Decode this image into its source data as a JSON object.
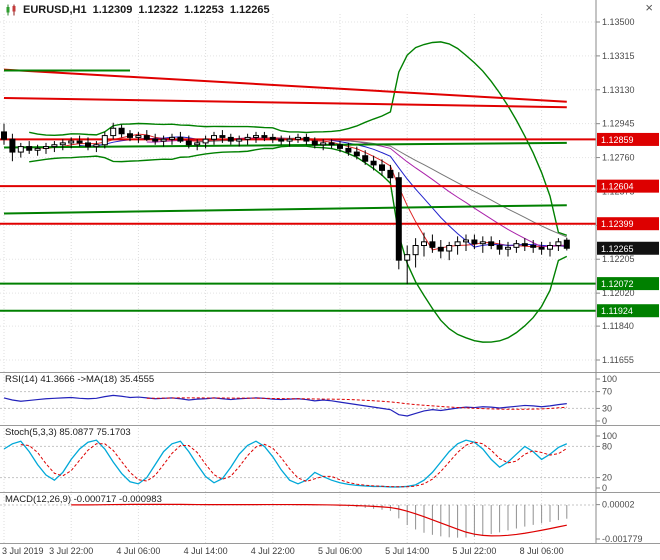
{
  "window": {
    "close_icon": "×"
  },
  "header": {
    "symbol": "EURUSD,H1",
    "open": "1.12309",
    "high": "1.12322",
    "low": "1.12253",
    "close": "1.12265"
  },
  "panels": {
    "rsi_label": "RSI(14) 41.3666 ->MA(18) 35.4555",
    "stoch_label": "Stoch(5,3,3) 85.0877 75.1703",
    "macd_label": "MACD(12,26,9) -0.000717 -0.000983"
  },
  "chart_data": [
    {
      "type": "candlestick",
      "title": "EURUSD,H1",
      "ylim": [
        1.11655,
        1.135
      ],
      "label_every_n_bars": 8,
      "x_labels": [
        "3 Jul 2019",
        "3 Jul 22:00",
        "4 Jul 06:00",
        "4 Jul 14:00",
        "4 Jul 22:00",
        "5 Jul 06:00",
        "5 Jul 14:00",
        "5 Jul 22:00",
        "8 Jul 06:00"
      ],
      "y_ticks": [
        "1.13500",
        "1.13315",
        "1.13130",
        "1.12945",
        "1.12760",
        "1.12575",
        "1.12390",
        "1.12205",
        "1.12020",
        "1.11840",
        "1.11655"
      ],
      "candles": [
        [
          1.129,
          1.12945,
          1.1283,
          1.1286
        ],
        [
          1.1286,
          1.1289,
          1.1274,
          1.1279
        ],
        [
          1.1279,
          1.1284,
          1.1276,
          1.1282
        ],
        [
          1.1282,
          1.1285,
          1.1278,
          1.128
        ],
        [
          1.128,
          1.1283,
          1.1277,
          1.1281
        ],
        [
          1.1281,
          1.1284,
          1.1278,
          1.1282
        ],
        [
          1.1282,
          1.1285,
          1.1279,
          1.1283
        ],
        [
          1.1283,
          1.1286,
          1.128,
          1.1284
        ],
        [
          1.1284,
          1.1287,
          1.1281,
          1.1285
        ],
        [
          1.1285,
          1.1288,
          1.1282,
          1.1284
        ],
        [
          1.1284,
          1.1287,
          1.128,
          1.1282
        ],
        [
          1.1282,
          1.1285,
          1.1279,
          1.1283
        ],
        [
          1.1283,
          1.129,
          1.1281,
          1.1288
        ],
        [
          1.1288,
          1.1295,
          1.1286,
          1.1292
        ],
        [
          1.1292,
          1.1294,
          1.1287,
          1.1289
        ],
        [
          1.1289,
          1.1291,
          1.1285,
          1.1287
        ],
        [
          1.1287,
          1.129,
          1.1284,
          1.1288
        ],
        [
          1.1288,
          1.1291,
          1.1285,
          1.1286
        ],
        [
          1.1286,
          1.1289,
          1.1283,
          1.1285
        ],
        [
          1.1285,
          1.1288,
          1.1282,
          1.1286
        ],
        [
          1.1286,
          1.1289,
          1.1283,
          1.1287
        ],
        [
          1.1287,
          1.129,
          1.1284,
          1.1285
        ],
        [
          1.1285,
          1.1288,
          1.1281,
          1.1283
        ],
        [
          1.1283,
          1.1286,
          1.128,
          1.1284
        ],
        [
          1.1284,
          1.1288,
          1.1281,
          1.1286
        ],
        [
          1.1286,
          1.129,
          1.1283,
          1.1288
        ],
        [
          1.1288,
          1.1291,
          1.1284,
          1.1287
        ],
        [
          1.1287,
          1.1289,
          1.1283,
          1.1285
        ],
        [
          1.1285,
          1.1288,
          1.1282,
          1.1286
        ],
        [
          1.1286,
          1.1289,
          1.1283,
          1.1287
        ],
        [
          1.1287,
          1.129,
          1.1284,
          1.1288
        ],
        [
          1.1288,
          1.129,
          1.1285,
          1.1287
        ],
        [
          1.1287,
          1.1289,
          1.1284,
          1.1286
        ],
        [
          1.1286,
          1.1288,
          1.1283,
          1.1285
        ],
        [
          1.1285,
          1.1288,
          1.1282,
          1.1286
        ],
        [
          1.1286,
          1.1289,
          1.1284,
          1.1287
        ],
        [
          1.1287,
          1.1289,
          1.1283,
          1.1285
        ],
        [
          1.1285,
          1.1287,
          1.1281,
          1.1283
        ],
        [
          1.1283,
          1.1286,
          1.128,
          1.1284
        ],
        [
          1.1284,
          1.1286,
          1.1281,
          1.1283
        ],
        [
          1.1283,
          1.1285,
          1.1279,
          1.1281
        ],
        [
          1.1281,
          1.1284,
          1.1277,
          1.1279
        ],
        [
          1.1279,
          1.1282,
          1.1275,
          1.1277
        ],
        [
          1.1277,
          1.128,
          1.1272,
          1.1274
        ],
        [
          1.1274,
          1.1277,
          1.1269,
          1.1272
        ],
        [
          1.1272,
          1.1275,
          1.1266,
          1.1269
        ],
        [
          1.1269,
          1.1272,
          1.1262,
          1.1265
        ],
        [
          1.1265,
          1.1268,
          1.1215,
          1.122
        ],
        [
          1.122,
          1.1228,
          1.1207,
          1.1223
        ],
        [
          1.1223,
          1.1232,
          1.1216,
          1.1228
        ],
        [
          1.1228,
          1.1235,
          1.1222,
          1.123
        ],
        [
          1.123,
          1.1234,
          1.1224,
          1.1227
        ],
        [
          1.1227,
          1.1231,
          1.1221,
          1.1225
        ],
        [
          1.1225,
          1.123,
          1.122,
          1.1228
        ],
        [
          1.1228,
          1.1233,
          1.1223,
          1.123
        ],
        [
          1.123,
          1.1234,
          1.1225,
          1.1231
        ],
        [
          1.1231,
          1.1234,
          1.1226,
          1.1229
        ],
        [
          1.1229,
          1.1233,
          1.1224,
          1.123
        ],
        [
          1.123,
          1.1233,
          1.1226,
          1.1228
        ],
        [
          1.1228,
          1.1231,
          1.1223,
          1.1226
        ],
        [
          1.1226,
          1.123,
          1.1222,
          1.1227
        ],
        [
          1.1227,
          1.1231,
          1.1224,
          1.1229
        ],
        [
          1.1229,
          1.1232,
          1.1225,
          1.1228
        ],
        [
          1.1228,
          1.1231,
          1.1224,
          1.1227
        ],
        [
          1.1227,
          1.123,
          1.1223,
          1.1226
        ],
        [
          1.1226,
          1.123,
          1.1222,
          1.1228
        ],
        [
          1.1228,
          1.1232,
          1.1225,
          1.123
        ],
        [
          1.12309,
          1.12322,
          1.12253,
          1.12265
        ]
      ],
      "moving_averages": [
        {
          "period": 5,
          "color": "#dd2222"
        },
        {
          "period": 10,
          "color": "#2222cc"
        },
        {
          "period": 18,
          "color": "#aa22aa"
        },
        {
          "period": 24,
          "color": "#777777"
        }
      ],
      "bollinger": {
        "period": 20,
        "mult": 3,
        "color": "#008000"
      },
      "levels": [
        {
          "type": "h",
          "price": 1.12859,
          "color": "#e00000",
          "w": 2
        },
        {
          "type": "h",
          "price": 1.12604,
          "color": "#e00000",
          "w": 2
        },
        {
          "type": "h",
          "price": 1.12399,
          "color": "#e00000",
          "w": 2
        },
        {
          "type": "h",
          "price": 1.12072,
          "color": "#008000",
          "w": 2
        },
        {
          "type": "h",
          "price": 1.11924,
          "color": "#008000",
          "w": 2
        },
        {
          "type": "seg",
          "b1": 0,
          "p1": 1.1324,
          "b2": 67,
          "p2": 1.13065,
          "color": "#e00000",
          "w": 2
        },
        {
          "type": "seg",
          "b1": 0,
          "p1": 1.13085,
          "b2": 67,
          "p2": 1.13035,
          "color": "#e00000",
          "w": 2
        },
        {
          "type": "seg",
          "b1": 0,
          "p1": 1.13235,
          "b2": 15,
          "p2": 1.13235,
          "color": "#008000",
          "w": 2
        },
        {
          "type": "seg",
          "b1": 0,
          "p1": 1.12815,
          "b2": 67,
          "p2": 1.1284,
          "color": "#008000",
          "w": 2
        },
        {
          "type": "seg",
          "b1": 0,
          "p1": 1.12455,
          "b2": 67,
          "p2": 1.125,
          "color": "#008000",
          "w": 2
        }
      ],
      "price_labels": [
        {
          "text": "1.12859",
          "value": 1.12859,
          "color": "#dd0000"
        },
        {
          "text": "1.12604",
          "value": 1.12604,
          "color": "#dd0000"
        },
        {
          "text": "1.12399",
          "value": 1.12399,
          "color": "#dd0000"
        },
        {
          "text": "1.12265",
          "value": 1.12265,
          "color": "#111111"
        },
        {
          "text": "1.12072",
          "value": 1.12072,
          "color": "#008000"
        },
        {
          "text": "1.11924",
          "value": 1.11924,
          "color": "#008000"
        }
      ]
    },
    {
      "type": "line",
      "name": "RSI(14)",
      "current": "41.3666",
      "ma_name": "MA(18)",
      "ma_current": "35.4555",
      "ylim": [
        0,
        100
      ],
      "y_ticks": [
        "100",
        "70",
        "30",
        "0"
      ],
      "levels": [
        70,
        30
      ],
      "color": "#2222bb",
      "signal": {
        "period": 18,
        "color": "#dd0000",
        "dash": true
      },
      "values": [
        55,
        50,
        47,
        49,
        51,
        53,
        54,
        55,
        56,
        54,
        53,
        54,
        58,
        61,
        59,
        56,
        57,
        55,
        53,
        54,
        55,
        53,
        50,
        52,
        53,
        55,
        53,
        51,
        53,
        54,
        55,
        54,
        52,
        51,
        52,
        53,
        51,
        48,
        50,
        48,
        45,
        42,
        39,
        36,
        33,
        30,
        27,
        15,
        12,
        18,
        24,
        27,
        25,
        28,
        31,
        33,
        32,
        34,
        33,
        31,
        33,
        35,
        37,
        36,
        34,
        36,
        39,
        41.37
      ]
    },
    {
      "type": "line",
      "name": "Stoch(5,3,3)",
      "current": "85.0877",
      "signal_current": "75.1703",
      "ylim": [
        0,
        100
      ],
      "y_ticks": [
        "100",
        "80",
        "20",
        "0"
      ],
      "levels": [
        80,
        20
      ],
      "color": "#00a8d8",
      "signal": {
        "period": 3,
        "color": "#dd0000",
        "dash": true
      },
      "values": [
        75,
        85,
        90,
        70,
        45,
        25,
        15,
        30,
        55,
        75,
        88,
        92,
        75,
        50,
        28,
        12,
        8,
        20,
        45,
        70,
        85,
        90,
        70,
        45,
        22,
        10,
        18,
        40,
        65,
        82,
        90,
        80,
        60,
        35,
        15,
        8,
        15,
        30,
        22,
        15,
        10,
        7,
        5,
        4,
        3,
        3,
        2,
        2,
        3,
        6,
        15,
        30,
        50,
        70,
        85,
        92,
        88,
        75,
        55,
        40,
        50,
        65,
        80,
        70,
        55,
        65,
        78,
        85.09
      ]
    },
    {
      "type": "histogram",
      "name": "MACD(12,26,9)",
      "current": "-0.000717",
      "signal_current": "-0.000983",
      "values_scale": 1e-05,
      "ylim": [
        -0.001779,
        2e-05
      ],
      "y_ticks": [
        {
          "text": "0.00002",
          "value": 2e-05
        },
        {
          "text": "-0.001779",
          "value": -0.001779
        }
      ],
      "color": "#909090",
      "signal": {
        "period": 9,
        "color": "#dd0000"
      },
      "zero_line": true,
      "values": [
        2,
        1,
        0,
        -1,
        -1,
        0,
        1,
        1,
        2,
        2,
        2,
        3,
        4,
        5,
        5,
        4,
        3,
        3,
        2,
        2,
        2,
        2,
        1,
        1,
        2,
        2,
        3,
        2,
        2,
        2,
        3,
        3,
        2,
        2,
        1,
        1,
        0,
        -1,
        -2,
        -3,
        -5,
        -8,
        -11,
        -15,
        -20,
        -25,
        -31,
        -70,
        -105,
        -128,
        -145,
        -156,
        -164,
        -169,
        -171,
        -170,
        -166,
        -160,
        -152,
        -143,
        -133,
        -123,
        -113,
        -104,
        -96,
        -88,
        -79,
        -71.7
      ]
    }
  ]
}
